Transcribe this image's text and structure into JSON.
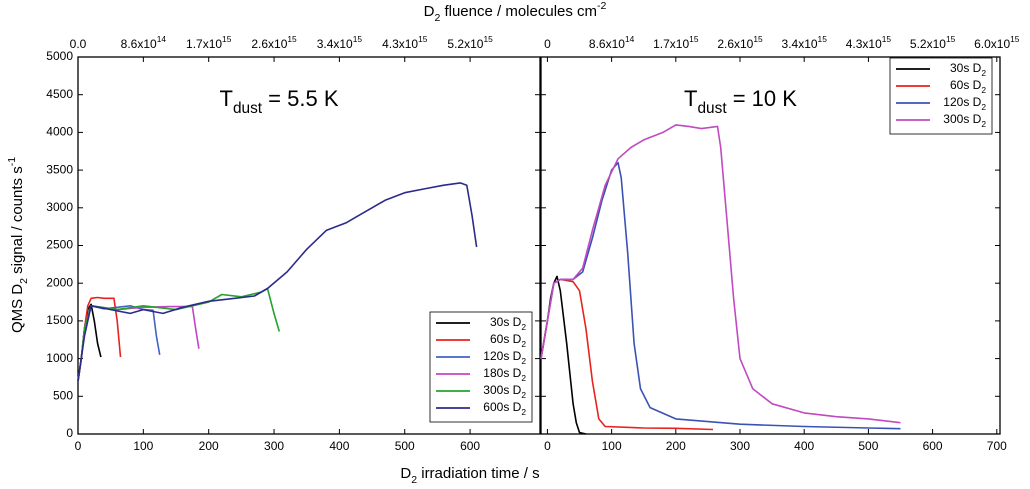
{
  "figure": {
    "x_label": [
      {
        "text": "D"
      },
      {
        "text": "2",
        "shift": "sub"
      },
      {
        "text": " irradiation time / s"
      }
    ],
    "x2_label": [
      {
        "text": "D"
      },
      {
        "text": "2",
        "shift": "sub"
      },
      {
        "text": " fluence / molecules cm"
      },
      {
        "text": "-2",
        "shift": "super"
      }
    ],
    "y_label": [
      {
        "text": "QMS D"
      },
      {
        "text": "2",
        "shift": "sub"
      },
      {
        "text": " signal / counts s"
      },
      {
        "text": "-1",
        "shift": "super"
      }
    ]
  },
  "chart_data": [
    {
      "type": "line",
      "annotation": [
        {
          "text": "T"
        },
        {
          "text": "dust",
          "shift": "sub"
        },
        {
          "text": " = 5.5 K"
        }
      ],
      "xlim": [
        0,
        707
      ],
      "xticks": [
        0,
        100,
        200,
        300,
        400,
        500,
        600
      ],
      "ylim": [
        0,
        5000
      ],
      "yticks": [
        0,
        500,
        1000,
        1500,
        2000,
        2500,
        3000,
        3500,
        4000,
        4500,
        5000
      ],
      "show_ytick_labels": true,
      "x2lim": [
        0,
        6080000000000000.0
      ],
      "x2ticks": [
        {
          "value": 0,
          "label": "0.0"
        },
        {
          "value": 860000000000000.0,
          "label": "8.6x10",
          "superscript": "14"
        },
        {
          "value": 1720000000000000.0,
          "label": "1.7x10",
          "superscript": "15"
        },
        {
          "value": 2580000000000000.0,
          "label": "2.6x10",
          "superscript": "15"
        },
        {
          "value": 3440000000000000.0,
          "label": "3.4x10",
          "superscript": "15"
        },
        {
          "value": 4300000000000000.0,
          "label": "4.3x10",
          "superscript": "15"
        },
        {
          "value": 5160000000000000.0,
          "label": "5.2x10",
          "superscript": "15"
        }
      ],
      "legend": "lower right",
      "series": [
        {
          "name": [
            {
              "text": "30s D"
            },
            {
              "text": "2",
              "shift": "sub"
            }
          ],
          "color": "#000000",
          "x": [
            0,
            5,
            10,
            15,
            20,
            25,
            30,
            35
          ],
          "values": [
            700,
            1000,
            1400,
            1650,
            1720,
            1500,
            1200,
            1020
          ]
        },
        {
          "name": [
            {
              "text": "60s D"
            },
            {
              "text": "2",
              "shift": "sub"
            }
          ],
          "color": "#e8231f",
          "x": [
            0,
            5,
            10,
            15,
            20,
            30,
            40,
            55,
            60,
            65
          ],
          "values": [
            700,
            1000,
            1400,
            1700,
            1800,
            1810,
            1800,
            1800,
            1500,
            1020
          ]
        },
        {
          "name": [
            {
              "text": "120s D"
            },
            {
              "text": "2",
              "shift": "sub"
            }
          ],
          "color": "#4262c4",
          "x": [
            0,
            5,
            10,
            20,
            40,
            60,
            80,
            100,
            115,
            120,
            125
          ],
          "values": [
            700,
            1000,
            1400,
            1700,
            1660,
            1680,
            1700,
            1650,
            1640,
            1300,
            1050
          ]
        },
        {
          "name": [
            {
              "text": "180s D"
            },
            {
              "text": "2",
              "shift": "sub"
            }
          ],
          "color": "#c444c4",
          "x": [
            0,
            5,
            10,
            20,
            60,
            100,
            140,
            175,
            180,
            185
          ],
          "values": [
            700,
            1000,
            1400,
            1700,
            1650,
            1680,
            1690,
            1690,
            1400,
            1130
          ]
        },
        {
          "name": [
            {
              "text": "300s D"
            },
            {
              "text": "2",
              "shift": "sub"
            }
          ],
          "color": "#26a22e",
          "x": [
            0,
            5,
            10,
            20,
            60,
            100,
            150,
            200,
            220,
            250,
            280,
            290,
            300,
            308
          ],
          "values": [
            700,
            1000,
            1400,
            1700,
            1650,
            1700,
            1650,
            1750,
            1850,
            1820,
            1880,
            1930,
            1600,
            1360
          ]
        },
        {
          "name": [
            {
              "text": "600s D"
            },
            {
              "text": "2",
              "shift": "sub"
            }
          ],
          "color": "#2b2b8c",
          "x": [
            0,
            10,
            20,
            50,
            80,
            100,
            130,
            160,
            200,
            240,
            270,
            290,
            320,
            350,
            380,
            410,
            440,
            470,
            500,
            530,
            560,
            585,
            595,
            603,
            610
          ],
          "values": [
            700,
            1300,
            1700,
            1650,
            1600,
            1650,
            1600,
            1680,
            1760,
            1800,
            1830,
            1930,
            2150,
            2450,
            2700,
            2800,
            2950,
            3100,
            3200,
            3250,
            3300,
            3330,
            3300,
            2900,
            2480
          ]
        }
      ]
    },
    {
      "type": "line",
      "annotation": [
        {
          "text": "T"
        },
        {
          "text": "dust",
          "shift": "sub"
        },
        {
          "text": " = 10 K"
        }
      ],
      "xlim": [
        -10,
        705
      ],
      "xticks": [
        0,
        100,
        200,
        300,
        400,
        500,
        600,
        700
      ],
      "ylim": [
        0,
        5000
      ],
      "yticks": [
        0,
        500,
        1000,
        1500,
        2000,
        2500,
        3000,
        3500,
        4000,
        4500,
        5000
      ],
      "show_ytick_labels": false,
      "x2lim": [
        -86000000000000.0,
        6063000000000000.0
      ],
      "x2ticks": [
        0,
        {
          "value": 860000000000000.0,
          "label": "8.6x10",
          "superscript": "14"
        },
        {
          "value": 1720000000000000.0,
          "label": "1.7x10",
          "superscript": "15"
        },
        {
          "value": 2580000000000000.0,
          "label": "2.6x10",
          "superscript": "15"
        },
        {
          "value": 3440000000000000.0,
          "label": "3.4x10",
          "superscript": "15"
        },
        {
          "value": 4300000000000000.0,
          "label": "4.3x10",
          "superscript": "15"
        },
        {
          "value": 5160000000000000.0,
          "label": "5.2x10",
          "superscript": "15"
        },
        {
          "value": 6020000000000000.0,
          "label": "6.0x10",
          "superscript": "15"
        }
      ],
      "legend": "upper right",
      "series": [
        {
          "name": [
            {
              "text": "30s D"
            },
            {
              "text": "2",
              "shift": "sub"
            }
          ],
          "color": "#000000",
          "x": [
            -10,
            0,
            5,
            10,
            15,
            20,
            30,
            40,
            45,
            50,
            60
          ],
          "values": [
            1000,
            1500,
            1800,
            2000,
            2090,
            1900,
            1200,
            400,
            150,
            20,
            0
          ]
        },
        {
          "name": [
            {
              "text": "60s D"
            },
            {
              "text": "2",
              "shift": "sub"
            }
          ],
          "color": "#e8231f",
          "x": [
            -10,
            0,
            10,
            20,
            40,
            50,
            60,
            70,
            80,
            90,
            150,
            200,
            258
          ],
          "values": [
            1000,
            1500,
            2000,
            2050,
            2020,
            1900,
            1400,
            700,
            200,
            100,
            80,
            75,
            60
          ]
        },
        {
          "name": [
            {
              "text": "120s D"
            },
            {
              "text": "2",
              "shift": "sub"
            }
          ],
          "color": "#3b52b5",
          "x": [
            -10,
            0,
            10,
            20,
            40,
            55,
            70,
            85,
            100,
            110,
            115,
            125,
            135,
            145,
            160,
            200,
            300,
            400,
            500,
            550
          ],
          "values": [
            1000,
            1500,
            2000,
            2050,
            2050,
            2150,
            2600,
            3100,
            3500,
            3600,
            3400,
            2400,
            1200,
            600,
            350,
            200,
            130,
            100,
            80,
            70
          ]
        },
        {
          "name": [
            {
              "text": "300s D"
            },
            {
              "text": "2",
              "shift": "sub"
            }
          ],
          "color": "#c04ac0",
          "x": [
            -10,
            0,
            10,
            20,
            40,
            55,
            70,
            90,
            110,
            130,
            150,
            180,
            200,
            220,
            240,
            265,
            270,
            280,
            290,
            300,
            320,
            350,
            400,
            450,
            500,
            550
          ],
          "values": [
            1000,
            1500,
            2000,
            2050,
            2050,
            2200,
            2700,
            3300,
            3650,
            3800,
            3900,
            4000,
            4100,
            4080,
            4050,
            4080,
            3800,
            2800,
            1800,
            1000,
            600,
            400,
            280,
            230,
            200,
            150
          ]
        }
      ]
    }
  ]
}
